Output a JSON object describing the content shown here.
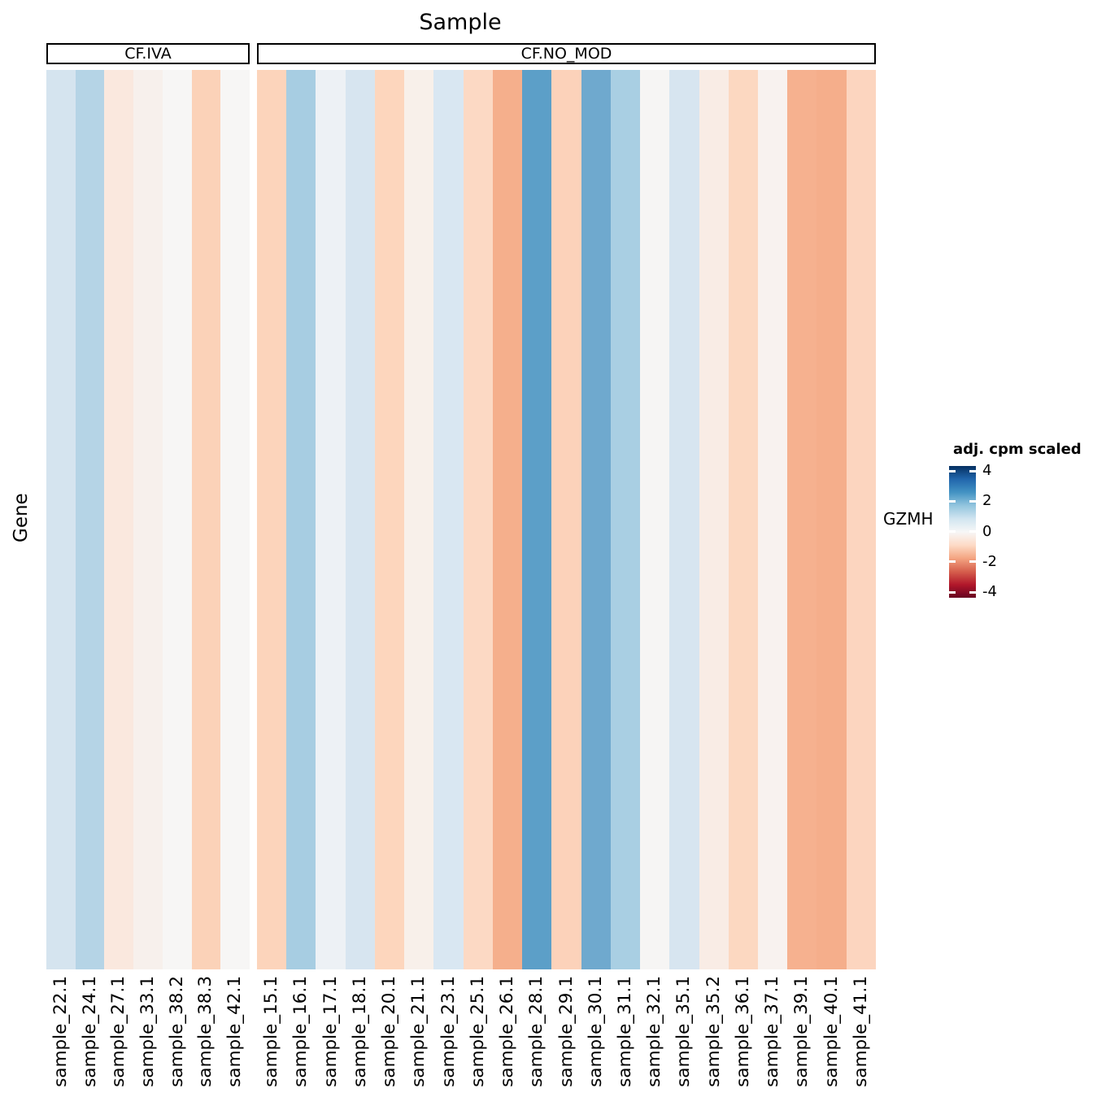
{
  "title": "Sample",
  "y_axis_title": "Gene",
  "row_label": "GZMH",
  "legend": {
    "title": "adj. cpm scaled",
    "ticks": [
      "4",
      "2",
      "0",
      "-2",
      "-4"
    ],
    "palette_top_to_bottom": [
      "#053061",
      "#2166ac",
      "#4393c3",
      "#92c5de",
      "#d1e5f0",
      "#f7f7f7",
      "#fddbc7",
      "#f4a582",
      "#d6604d",
      "#b2182b",
      "#67001f"
    ],
    "tick_mark_color": "#ffffff"
  },
  "chart_data": {
    "type": "heatmap",
    "title": "Sample",
    "xlabel": "Sample",
    "ylabel": "Gene",
    "rows": [
      "GZMH"
    ],
    "legend_title": "adj. cpm scaled",
    "legend_ticks": [
      4,
      2,
      0,
      -2,
      -4
    ],
    "color_limits": [
      -4.4,
      4.4
    ],
    "palette": "RdBu (blue = high, red = low)",
    "groups": [
      {
        "name": "CF.IVA",
        "samples": [
          {
            "label": "sample_22.1",
            "value": 0.85,
            "color": "#d5e4ef"
          },
          {
            "label": "sample_24.1",
            "value": 1.3,
            "color": "#b5d4e6"
          },
          {
            "label": "sample_27.1",
            "value": -0.55,
            "color": "#fae8de"
          },
          {
            "label": "sample_33.1",
            "value": -0.25,
            "color": "#f7f0ec"
          },
          {
            "label": "sample_38.2",
            "value": 0.0,
            "color": "#f7f6f5"
          },
          {
            "label": "sample_38.3",
            "value": -1.1,
            "color": "#fbd2b8"
          },
          {
            "label": "sample_42.1",
            "value": 0.0,
            "color": "#f7f6f5"
          }
        ]
      },
      {
        "name": "CF.NO_MOD",
        "samples": [
          {
            "label": "sample_15.1",
            "value": -1.0,
            "color": "#fcd4bb"
          },
          {
            "label": "sample_16.1",
            "value": 1.55,
            "color": "#a7cde2"
          },
          {
            "label": "sample_17.1",
            "value": 0.3,
            "color": "#edf1f5"
          },
          {
            "label": "sample_18.1",
            "value": 0.85,
            "color": "#d7e5f0"
          },
          {
            "label": "sample_20.1",
            "value": -0.95,
            "color": "#fdd6bd"
          },
          {
            "label": "sample_21.1",
            "value": -0.3,
            "color": "#f8f0ea"
          },
          {
            "label": "sample_23.1",
            "value": 0.8,
            "color": "#d9e7f2"
          },
          {
            "label": "sample_25.1",
            "value": -0.85,
            "color": "#fcd9c4"
          },
          {
            "label": "sample_26.1",
            "value": -1.65,
            "color": "#f5af8c"
          },
          {
            "label": "sample_28.1",
            "value": 2.35,
            "color": "#5c9fc8"
          },
          {
            "label": "sample_29.1",
            "value": -1.05,
            "color": "#fcd2ba"
          },
          {
            "label": "sample_30.1",
            "value": 2.15,
            "color": "#6fa9ce"
          },
          {
            "label": "sample_31.1",
            "value": 1.5,
            "color": "#a9cfe3"
          },
          {
            "label": "sample_32.1",
            "value": 0.0,
            "color": "#f6f5f4"
          },
          {
            "label": "sample_35.1",
            "value": 0.85,
            "color": "#d7e5f0"
          },
          {
            "label": "sample_35.2",
            "value": -0.45,
            "color": "#f9ece5"
          },
          {
            "label": "sample_36.1",
            "value": -0.9,
            "color": "#fcd8c1"
          },
          {
            "label": "sample_37.1",
            "value": -0.2,
            "color": "#f8f2ef"
          },
          {
            "label": "sample_39.1",
            "value": -1.6,
            "color": "#f6b18f"
          },
          {
            "label": "sample_40.1",
            "value": -1.65,
            "color": "#f5ae8b"
          },
          {
            "label": "sample_41.1",
            "value": -1.0,
            "color": "#fcd5bf"
          }
        ]
      }
    ]
  }
}
